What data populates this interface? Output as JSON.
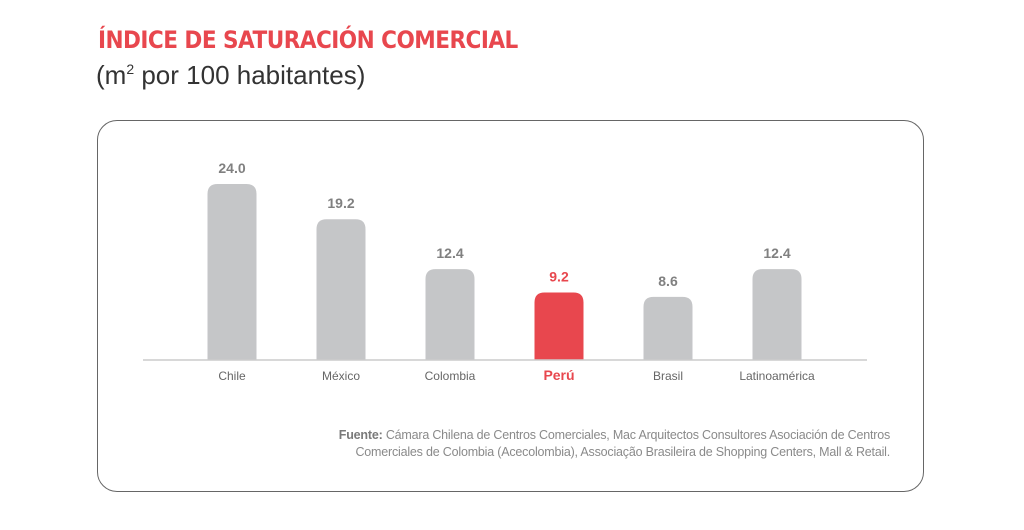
{
  "header": {
    "title": "ÍNDICE DE SATURACIÓN COMERCIAL",
    "subtitle_prefix": "(m",
    "subtitle_sup": "2",
    "subtitle_suffix": " por 100 habitantes)"
  },
  "colors": {
    "accent": "#e8474e",
    "bar": "#c5c6c8",
    "value_label": "#808080",
    "axis": "#cccccc",
    "category_label": "#666666"
  },
  "chart_data": {
    "type": "bar",
    "title": "ÍNDICE DE SATURACIÓN COMERCIAL",
    "subtitle": "(m2 por 100 habitantes)",
    "xlabel": "",
    "ylabel": "",
    "ylim": [
      0,
      24
    ],
    "grid": false,
    "categories": [
      "Chile",
      "México",
      "Colombia",
      "Perú",
      "Brasil",
      "Latinoamérica"
    ],
    "values": [
      24.0,
      19.2,
      12.4,
      9.2,
      8.6,
      12.4
    ],
    "value_labels": [
      "24.0",
      "19.2",
      "12.4",
      "9.2",
      "8.6",
      "12.4"
    ],
    "highlight": "Perú"
  },
  "source": {
    "label": "Fuente:",
    "line1": " Cámara Chilena de Centros Comerciales, Mac Arquitectos Consultores Asociación de Centros",
    "line2": "Comerciales de Colombia (Acecolombia), Associação Brasileira de Shopping Centers, Mall & Retail."
  }
}
